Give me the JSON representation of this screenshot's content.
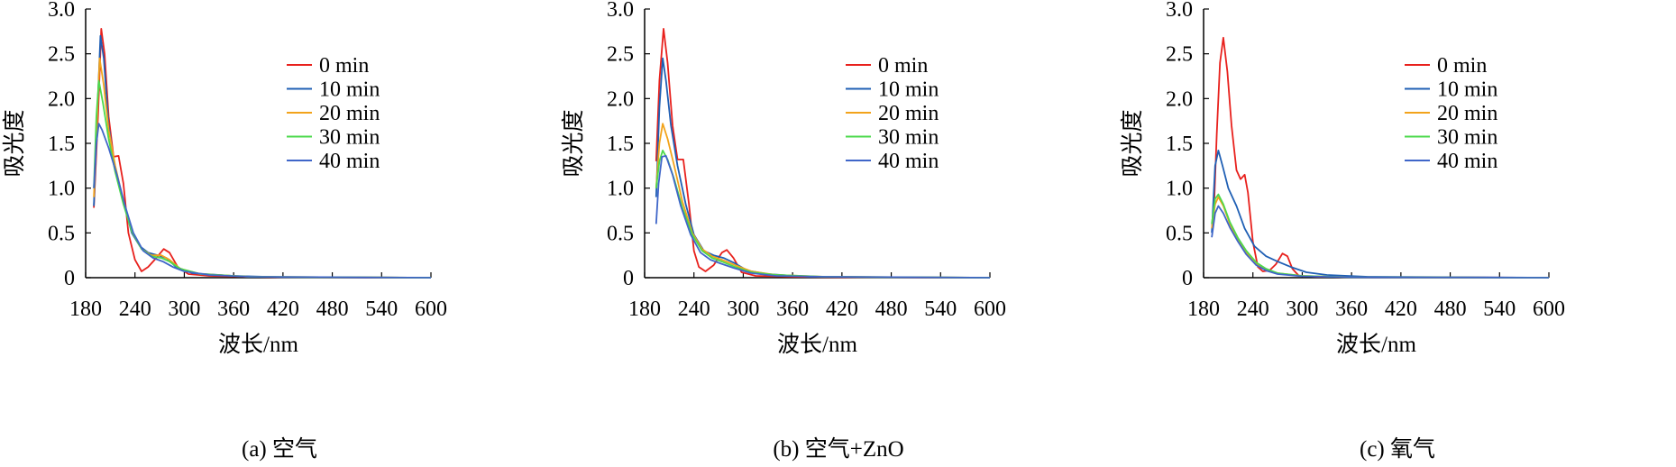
{
  "chart_data": [
    {
      "type": "line",
      "caption": "(a) 空气",
      "xlabel": "波长/nm",
      "ylabel": "吸光度",
      "xlim": [
        180,
        600
      ],
      "ylim": [
        0,
        3.0
      ],
      "xticks": [
        "180",
        "240",
        "300",
        "360",
        "420",
        "480",
        "540",
        "600"
      ],
      "yticks": [
        "0",
        "0.5",
        "1.0",
        "1.5",
        "2.0",
        "2.5",
        "3.0"
      ],
      "legend_position": "upper-right",
      "series": [
        {
          "name": "0 min",
          "color": "#e8211d",
          "points": [
            [
              190,
              0.78
            ],
            [
              195,
              1.8
            ],
            [
              199,
              2.78
            ],
            [
              203,
              2.5
            ],
            [
              208,
              1.8
            ],
            [
              214,
              1.35
            ],
            [
              220,
              1.36
            ],
            [
              226,
              1.05
            ],
            [
              232,
              0.5
            ],
            [
              240,
              0.2
            ],
            [
              248,
              0.07
            ],
            [
              256,
              0.12
            ],
            [
              266,
              0.22
            ],
            [
              275,
              0.32
            ],
            [
              282,
              0.28
            ],
            [
              292,
              0.12
            ],
            [
              305,
              0.04
            ],
            [
              330,
              0.02
            ],
            [
              380,
              0.01
            ],
            [
              420,
              0.005
            ],
            [
              600,
              0.0
            ]
          ]
        },
        {
          "name": "10 min",
          "color": "#1f5fb4",
          "points": [
            [
              190,
              0.8
            ],
            [
              194,
              1.8
            ],
            [
              198,
              2.7
            ],
            [
              202,
              2.45
            ],
            [
              208,
              1.7
            ],
            [
              216,
              1.2
            ],
            [
              226,
              0.85
            ],
            [
              236,
              0.5
            ],
            [
              246,
              0.35
            ],
            [
              256,
              0.28
            ],
            [
              268,
              0.25
            ],
            [
              278,
              0.22
            ],
            [
              290,
              0.12
            ],
            [
              310,
              0.05
            ],
            [
              360,
              0.02
            ],
            [
              420,
              0.005
            ],
            [
              600,
              0.0
            ]
          ]
        },
        {
          "name": "20 min",
          "color": "#f2a31b",
          "points": [
            [
              190,
              0.9
            ],
            [
              194,
              1.8
            ],
            [
              197,
              2.45
            ],
            [
              202,
              2.15
            ],
            [
              208,
              1.65
            ],
            [
              216,
              1.25
            ],
            [
              226,
              0.85
            ],
            [
              236,
              0.52
            ],
            [
              248,
              0.32
            ],
            [
              260,
              0.25
            ],
            [
              272,
              0.25
            ],
            [
              282,
              0.2
            ],
            [
              295,
              0.1
            ],
            [
              320,
              0.04
            ],
            [
              380,
              0.01
            ],
            [
              600,
              0.0
            ]
          ]
        },
        {
          "name": "30 min",
          "color": "#4cd94c",
          "points": [
            [
              190,
              1.0
            ],
            [
              193,
              1.8
            ],
            [
              196,
              2.2
            ],
            [
              201,
              1.95
            ],
            [
              208,
              1.55
            ],
            [
              216,
              1.18
            ],
            [
              226,
              0.82
            ],
            [
              236,
              0.52
            ],
            [
              248,
              0.32
            ],
            [
              260,
              0.24
            ],
            [
              272,
              0.22
            ],
            [
              282,
              0.18
            ],
            [
              295,
              0.1
            ],
            [
              320,
              0.04
            ],
            [
              380,
              0.01
            ],
            [
              600,
              0.0
            ]
          ]
        },
        {
          "name": "40 min",
          "color": "#3f66c9",
          "points": [
            [
              190,
              1.0
            ],
            [
              193,
              1.5
            ],
            [
              196,
              1.72
            ],
            [
              200,
              1.65
            ],
            [
              208,
              1.45
            ],
            [
              218,
              1.15
            ],
            [
              228,
              0.8
            ],
            [
              238,
              0.5
            ],
            [
              250,
              0.3
            ],
            [
              262,
              0.22
            ],
            [
              274,
              0.18
            ],
            [
              286,
              0.12
            ],
            [
              300,
              0.07
            ],
            [
              330,
              0.03
            ],
            [
              380,
              0.01
            ],
            [
              600,
              0.0
            ]
          ]
        }
      ]
    },
    {
      "type": "line",
      "caption": "(b) 空气+ZnO",
      "xlabel": "波长/nm",
      "ylabel": "吸光度",
      "xlim": [
        180,
        600
      ],
      "ylim": [
        0,
        3.0
      ],
      "xticks": [
        "180",
        "240",
        "300",
        "360",
        "420",
        "480",
        "540",
        "600"
      ],
      "yticks": [
        "0",
        "0.5",
        "1.0",
        "1.5",
        "2.0",
        "2.5",
        "3.0"
      ],
      "legend_position": "upper-right",
      "series": [
        {
          "name": "0 min",
          "color": "#e8211d",
          "points": [
            [
              194,
              1.3
            ],
            [
              198,
              2.2
            ],
            [
              203,
              2.78
            ],
            [
              208,
              2.4
            ],
            [
              214,
              1.7
            ],
            [
              220,
              1.32
            ],
            [
              227,
              1.32
            ],
            [
              234,
              0.82
            ],
            [
              240,
              0.3
            ],
            [
              246,
              0.12
            ],
            [
              254,
              0.07
            ],
            [
              264,
              0.14
            ],
            [
              274,
              0.28
            ],
            [
              280,
              0.31
            ],
            [
              288,
              0.22
            ],
            [
              298,
              0.06
            ],
            [
              315,
              0.02
            ],
            [
              360,
              0.01
            ],
            [
              420,
              0.005
            ],
            [
              600,
              0.0
            ]
          ]
        },
        {
          "name": "10 min",
          "color": "#1f5fb4",
          "points": [
            [
              194,
              0.9
            ],
            [
              198,
              1.9
            ],
            [
              202,
              2.45
            ],
            [
              206,
              2.2
            ],
            [
              212,
              1.7
            ],
            [
              220,
              1.25
            ],
            [
              230,
              0.82
            ],
            [
              240,
              0.48
            ],
            [
              252,
              0.3
            ],
            [
              264,
              0.25
            ],
            [
              276,
              0.22
            ],
            [
              290,
              0.16
            ],
            [
              305,
              0.08
            ],
            [
              330,
              0.04
            ],
            [
              380,
              0.01
            ],
            [
              600,
              0.0
            ]
          ]
        },
        {
          "name": "20 min",
          "color": "#f2a31b",
          "points": [
            [
              194,
              1.0
            ],
            [
              198,
              1.5
            ],
            [
              202,
              1.72
            ],
            [
              208,
              1.55
            ],
            [
              216,
              1.25
            ],
            [
              226,
              0.85
            ],
            [
              238,
              0.5
            ],
            [
              250,
              0.32
            ],
            [
              262,
              0.24
            ],
            [
              274,
              0.2
            ],
            [
              290,
              0.14
            ],
            [
              310,
              0.07
            ],
            [
              340,
              0.03
            ],
            [
              400,
              0.01
            ],
            [
              600,
              0.0
            ]
          ]
        },
        {
          "name": "30 min",
          "color": "#4cd94c",
          "points": [
            [
              194,
              1.0
            ],
            [
              198,
              1.3
            ],
            [
              202,
              1.42
            ],
            [
              208,
              1.32
            ],
            [
              216,
              1.1
            ],
            [
              226,
              0.78
            ],
            [
              238,
              0.48
            ],
            [
              250,
              0.3
            ],
            [
              262,
              0.22
            ],
            [
              274,
              0.18
            ],
            [
              290,
              0.12
            ],
            [
              310,
              0.06
            ],
            [
              340,
              0.03
            ],
            [
              400,
              0.01
            ],
            [
              600,
              0.0
            ]
          ]
        },
        {
          "name": "40 min",
          "color": "#3f66c9",
          "points": [
            [
              194,
              0.6
            ],
            [
              197,
              1.05
            ],
            [
              201,
              1.35
            ],
            [
              206,
              1.36
            ],
            [
              214,
              1.15
            ],
            [
              224,
              0.8
            ],
            [
              236,
              0.48
            ],
            [
              248,
              0.28
            ],
            [
              260,
              0.2
            ],
            [
              272,
              0.16
            ],
            [
              288,
              0.11
            ],
            [
              310,
              0.05
            ],
            [
              340,
              0.02
            ],
            [
              400,
              0.01
            ],
            [
              600,
              0.0
            ]
          ]
        }
      ]
    },
    {
      "type": "line",
      "caption": "(c) 氧气",
      "xlabel": "波长/nm",
      "ylabel": "吸光度",
      "xlim": [
        180,
        600
      ],
      "ylim": [
        0,
        3.0
      ],
      "xticks": [
        "180",
        "240",
        "300",
        "360",
        "420",
        "480",
        "540",
        "600"
      ],
      "yticks": [
        "0",
        "0.5",
        "1.0",
        "1.5",
        "2.0",
        "2.5",
        "3.0"
      ],
      "legend_position": "upper-right",
      "series": [
        {
          "name": "0 min",
          "color": "#e8211d",
          "points": [
            [
              192,
              0.6
            ],
            [
              196,
              1.6
            ],
            [
              200,
              2.4
            ],
            [
              204,
              2.68
            ],
            [
              209,
              2.3
            ],
            [
              214,
              1.7
            ],
            [
              220,
              1.2
            ],
            [
              225,
              1.1
            ],
            [
              230,
              1.15
            ],
            [
              234,
              0.95
            ],
            [
              240,
              0.4
            ],
            [
              246,
              0.12
            ],
            [
              252,
              0.07
            ],
            [
              260,
              0.08
            ],
            [
              268,
              0.15
            ],
            [
              276,
              0.27
            ],
            [
              282,
              0.24
            ],
            [
              288,
              0.1
            ],
            [
              296,
              0.02
            ],
            [
              320,
              0.01
            ],
            [
              400,
              0.005
            ],
            [
              600,
              0.0
            ]
          ]
        },
        {
          "name": "10 min",
          "color": "#1f5fb4",
          "points": [
            [
              190,
              0.5
            ],
            [
              194,
              1.25
            ],
            [
              198,
              1.42
            ],
            [
              203,
              1.25
            ],
            [
              210,
              1.0
            ],
            [
              220,
              0.8
            ],
            [
              230,
              0.55
            ],
            [
              242,
              0.35
            ],
            [
              256,
              0.24
            ],
            [
              270,
              0.18
            ],
            [
              286,
              0.12
            ],
            [
              305,
              0.06
            ],
            [
              330,
              0.03
            ],
            [
              380,
              0.01
            ],
            [
              600,
              0.0
            ]
          ]
        },
        {
          "name": "20 min",
          "color": "#f2a31b",
          "points": [
            [
              190,
              0.55
            ],
            [
              194,
              0.82
            ],
            [
              198,
              0.9
            ],
            [
              204,
              0.8
            ],
            [
              212,
              0.6
            ],
            [
              222,
              0.42
            ],
            [
              232,
              0.28
            ],
            [
              244,
              0.16
            ],
            [
              256,
              0.09
            ],
            [
              270,
              0.05
            ],
            [
              300,
              0.02
            ],
            [
              360,
              0.005
            ],
            [
              600,
              0.0
            ]
          ]
        },
        {
          "name": "30 min",
          "color": "#4cd94c",
          "points": [
            [
              190,
              0.6
            ],
            [
              194,
              0.88
            ],
            [
              198,
              0.93
            ],
            [
              204,
              0.82
            ],
            [
              212,
              0.62
            ],
            [
              222,
              0.44
            ],
            [
              232,
              0.3
            ],
            [
              244,
              0.17
            ],
            [
              256,
              0.1
            ],
            [
              270,
              0.05
            ],
            [
              300,
              0.02
            ],
            [
              360,
              0.005
            ],
            [
              600,
              0.0
            ]
          ]
        },
        {
          "name": "40 min",
          "color": "#3f66c9",
          "points": [
            [
              190,
              0.45
            ],
            [
              194,
              0.72
            ],
            [
              198,
              0.8
            ],
            [
              204,
              0.72
            ],
            [
              212,
              0.56
            ],
            [
              222,
              0.4
            ],
            [
              232,
              0.26
            ],
            [
              244,
              0.14
            ],
            [
              256,
              0.08
            ],
            [
              270,
              0.04
            ],
            [
              300,
              0.015
            ],
            [
              360,
              0.005
            ],
            [
              600,
              0.0
            ]
          ]
        }
      ]
    }
  ]
}
